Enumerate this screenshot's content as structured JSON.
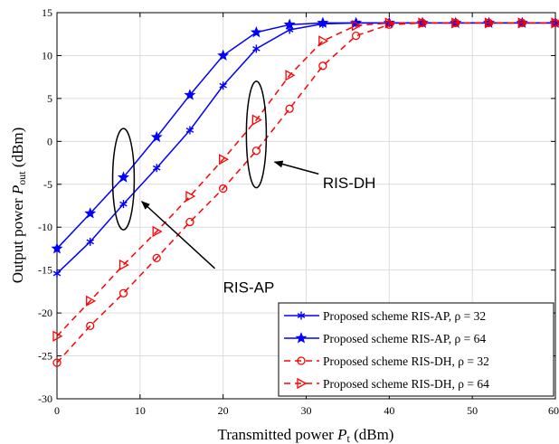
{
  "chart_data": {
    "type": "line",
    "xlabel_main": "Transmitted power ",
    "xlabel_sym": "P",
    "xlabel_sub": "t",
    "xlabel_unit": " (dBm)",
    "ylabel_main": "Output power ",
    "ylabel_sym": "P",
    "ylabel_sub": "out",
    "ylabel_unit": " (dBm)",
    "xlim": [
      0,
      60
    ],
    "ylim": [
      -30,
      15
    ],
    "xticks": [
      0,
      10,
      20,
      30,
      40,
      50,
      60
    ],
    "yticks": [
      -30,
      -25,
      -20,
      -15,
      -10,
      -5,
      0,
      5,
      10,
      15
    ],
    "grid": true,
    "legend_position": "bottom-right",
    "series": [
      {
        "name": "Proposed scheme RIS-AP, ρ = 32",
        "color": "#0000ff",
        "dash": "solid",
        "marker": "asterisk",
        "x": [
          0,
          4,
          8,
          12,
          16,
          20,
          24,
          28,
          32,
          36,
          40,
          44,
          48,
          52,
          56,
          60
        ],
        "y": [
          -15.4,
          -11.7,
          -7.3,
          -3.1,
          1.3,
          6.5,
          10.8,
          13.0,
          13.7,
          13.8,
          13.8,
          13.8,
          13.8,
          13.8,
          13.8,
          13.8
        ]
      },
      {
        "name": "Proposed scheme RIS-AP, ρ = 64",
        "color": "#0000ff",
        "dash": "solid",
        "marker": "star",
        "x": [
          0,
          4,
          8,
          12,
          16,
          20,
          24,
          28,
          32,
          36,
          40,
          44,
          48,
          52,
          56,
          60
        ],
        "y": [
          -12.5,
          -8.4,
          -4.2,
          0.5,
          5.4,
          10.0,
          12.7,
          13.6,
          13.8,
          13.8,
          13.8,
          13.8,
          13.8,
          13.8,
          13.8,
          13.8
        ]
      },
      {
        "name": "Proposed scheme RIS-DH, ρ = 32",
        "color": "#ff0000",
        "dash": "dashed",
        "marker": "circle",
        "x": [
          0,
          4,
          8,
          12,
          16,
          20,
          24,
          28,
          32,
          36,
          40,
          44,
          48,
          52,
          56,
          60
        ],
        "y": [
          -25.8,
          -21.5,
          -17.7,
          -13.6,
          -9.4,
          -5.5,
          -1.1,
          3.8,
          8.8,
          12.3,
          13.6,
          13.8,
          13.8,
          13.8,
          13.8,
          13.8
        ]
      },
      {
        "name": "Proposed scheme RIS-DH, ρ = 64",
        "color": "#ff0000",
        "dash": "dashed",
        "marker": "triangle-right",
        "x": [
          0,
          4,
          8,
          12,
          16,
          20,
          24,
          28,
          32,
          36,
          40,
          44,
          48,
          52,
          56,
          60
        ],
        "y": [
          -22.7,
          -18.6,
          -14.4,
          -10.5,
          -6.4,
          -2.1,
          2.5,
          7.7,
          11.7,
          13.5,
          13.8,
          13.8,
          13.8,
          13.8,
          13.8,
          13.8
        ]
      }
    ],
    "annotations": [
      {
        "text": "RIS-AP",
        "ellipse_center": [
          8,
          -4.4
        ],
        "ellipse_radius": [
          1.3,
          5.9
        ],
        "arrow_from": [
          19,
          -14.8
        ],
        "arrow_to": [
          10.2,
          -7.0
        ],
        "text_at": [
          20.0,
          -17.0
        ]
      },
      {
        "text": "RIS-DH",
        "ellipse_center": [
          24,
          0.8
        ],
        "ellipse_radius": [
          1.2,
          6.2
        ],
        "arrow_from": [
          31.5,
          -3.8
        ],
        "arrow_to": [
          26.2,
          -2.4
        ],
        "text_at": [
          32.0,
          -4.8
        ]
      }
    ]
  }
}
